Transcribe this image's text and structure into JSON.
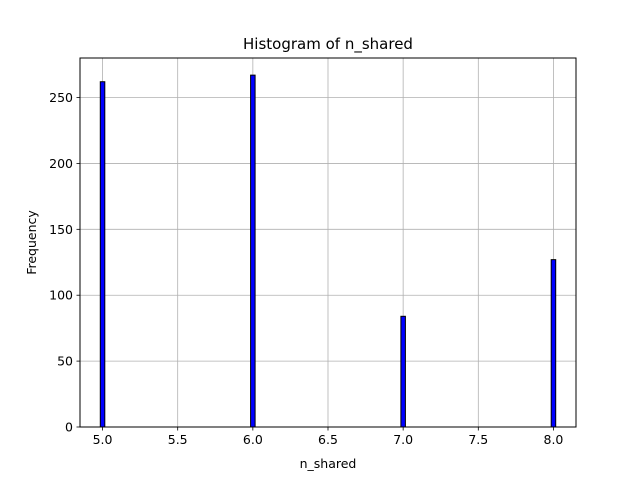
{
  "chart_data": {
    "type": "bar",
    "title": "Histogram of n_shared",
    "xlabel": "n_shared",
    "ylabel": "Frequency",
    "xlim": [
      4.85,
      8.15
    ],
    "ylim": [
      0,
      280
    ],
    "xticks": [
      5.0,
      5.5,
      6.0,
      6.5,
      7.0,
      7.5,
      8.0
    ],
    "xtick_labels": [
      "5.0",
      "5.5",
      "6.0",
      "6.5",
      "7.0",
      "7.5",
      "8.0"
    ],
    "yticks": [
      0,
      50,
      100,
      150,
      200,
      250
    ],
    "ytick_labels": [
      "0",
      "50",
      "100",
      "150",
      "200",
      "250"
    ],
    "grid": true,
    "bar_color": "#0000ff",
    "edge_color": "#000000",
    "bin_width": 0.03,
    "bins": [
      {
        "x": 5.0,
        "value": 262
      },
      {
        "x": 6.0,
        "value": 267
      },
      {
        "x": 7.0,
        "value": 84
      },
      {
        "x": 8.0,
        "value": 127
      }
    ]
  }
}
